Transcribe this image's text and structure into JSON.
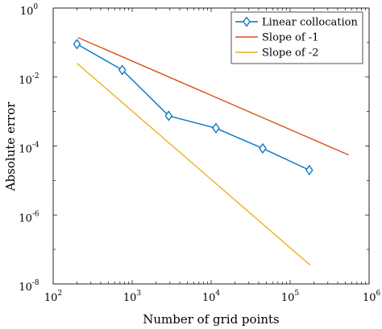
{
  "chart_data": {
    "type": "line",
    "xlabel": "Number of grid points",
    "ylabel": "Absolute error",
    "xscale": "log",
    "yscale": "log",
    "xlim": [
      100,
      1000000
    ],
    "ylim": [
      1e-08,
      1
    ],
    "grid": false,
    "legend_position": "top-right",
    "x_ticks": [
      {
        "value": 100,
        "base": "10",
        "exp": "2"
      },
      {
        "value": 1000,
        "base": "10",
        "exp": "3"
      },
      {
        "value": 10000,
        "base": "10",
        "exp": "4"
      },
      {
        "value": 100000,
        "base": "10",
        "exp": "5"
      },
      {
        "value": 1000000,
        "base": "10",
        "exp": "6"
      }
    ],
    "y_ticks": [
      {
        "value": 1e-08,
        "base": "10",
        "exp": "-8"
      },
      {
        "value": 1e-06,
        "base": "10",
        "exp": "-6"
      },
      {
        "value": 0.0001,
        "base": "10",
        "exp": "-4"
      },
      {
        "value": 0.01,
        "base": "10",
        "exp": "-2"
      },
      {
        "value": 1,
        "base": "10",
        "exp": "0"
      }
    ],
    "series": [
      {
        "name": "Linear collocation",
        "color": "#0072BD",
        "marker": "diamond",
        "x": [
          200,
          750,
          2900,
          11500,
          45000,
          175000
        ],
        "y": [
          0.09,
          0.016,
          0.00075,
          0.00033,
          8.5e-05,
          2e-05
        ]
      },
      {
        "name": "Slope of -1",
        "color": "#D95319",
        "marker": "none",
        "x": [
          205,
          550000
        ],
        "y": [
          0.14,
          5.5e-05
        ]
      },
      {
        "name": "Slope of -2",
        "color": "#EDB120",
        "marker": "none",
        "x": [
          200,
          180000
        ],
        "y": [
          0.025,
          3.5e-08
        ]
      }
    ]
  }
}
